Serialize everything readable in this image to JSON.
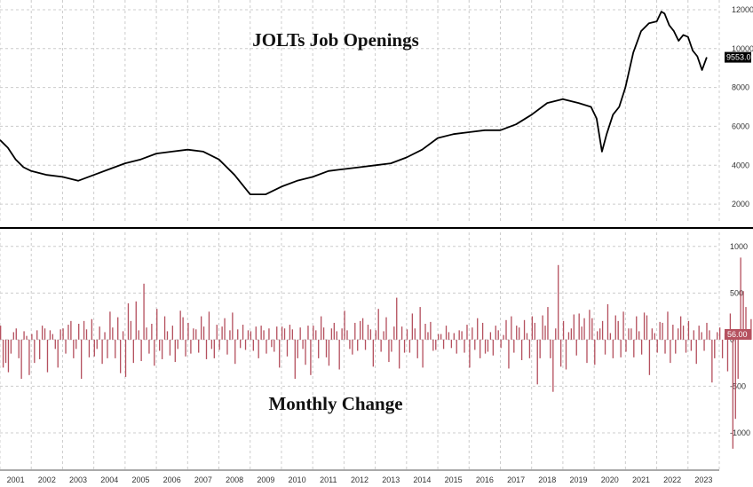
{
  "chart_data": [
    {
      "type": "line",
      "title": "JOLTs Job Openings",
      "xlabel": "",
      "ylabel": "",
      "ylim": [
        1000,
        12500
      ],
      "yticks": [
        2000,
        4000,
        6000,
        8000,
        10000,
        12000
      ],
      "last_value_label": "9553.0",
      "last_value": 9553,
      "series": [
        {
          "x": [
            2001.0,
            2001.25,
            2001.5,
            2001.75,
            2002.0,
            2002.5,
            2003.0,
            2003.5,
            2004.0,
            2004.5,
            2005.0,
            2005.5,
            2006.0,
            2006.5,
            2007.0,
            2007.5,
            2008.0,
            2008.5,
            2009.0,
            2009.5,
            2010.0,
            2010.5,
            2011.0,
            2011.5,
            2012.0,
            2012.5,
            2013.0,
            2013.5,
            2014.0,
            2014.5,
            2015.0,
            2015.5,
            2016.0,
            2016.5,
            2017.0,
            2017.5,
            2018.0,
            2018.5,
            2019.0,
            2019.5,
            2019.9,
            2020.08,
            2020.25,
            2020.4,
            2020.6,
            2020.8,
            2021.0,
            2021.25,
            2021.5,
            2021.75,
            2022.0,
            2022.15,
            2022.25,
            2022.4,
            2022.55,
            2022.7,
            2022.85,
            2023.0,
            2023.15,
            2023.3,
            2023.45,
            2023.6
          ],
          "y": [
            5300,
            4900,
            4300,
            3900,
            3700,
            3500,
            3400,
            3200,
            3500,
            3800,
            4100,
            4300,
            4600,
            4700,
            4800,
            4700,
            4300,
            3500,
            2500,
            2500,
            2900,
            3200,
            3400,
            3700,
            3800,
            3900,
            4000,
            4100,
            4400,
            4800,
            5400,
            5600,
            5700,
            5800,
            5800,
            6100,
            6600,
            7200,
            7400,
            7200,
            7000,
            6400,
            4700,
            5600,
            6600,
            7000,
            8000,
            9800,
            10900,
            11300,
            11400,
            11900,
            11800,
            11200,
            10900,
            10400,
            10700,
            10600,
            9900,
            9600,
            8900,
            9553
          ]
        }
      ]
    },
    {
      "type": "bar",
      "title": "Monthly Change",
      "xlabel": "",
      "ylabel": "",
      "ylim": [
        -1400,
        1150
      ],
      "yticks": [
        -1000,
        -500,
        0,
        500,
        1000
      ],
      "last_value_label": "56.00",
      "last_value": 56,
      "x_start": 2001.0,
      "x_step": 0.0833333,
      "values": [
        150,
        -300,
        -250,
        -350,
        -150,
        80,
        120,
        -200,
        -420,
        90,
        40,
        -380,
        60,
        -250,
        100,
        -210,
        150,
        120,
        -350,
        100,
        60,
        -100,
        -300,
        110,
        120,
        -150,
        160,
        200,
        -200,
        -100,
        170,
        -420,
        200,
        110,
        -190,
        220,
        -180,
        -100,
        140,
        -260,
        80,
        -200,
        300,
        130,
        -200,
        240,
        -360,
        90,
        -400,
        390,
        200,
        -250,
        410,
        100,
        -230,
        600,
        130,
        -150,
        170,
        -280,
        330,
        -120,
        -210,
        250,
        90,
        -170,
        150,
        -240,
        -100,
        310,
        240,
        -180,
        180,
        -150,
        120,
        110,
        -140,
        250,
        140,
        -210,
        300,
        -100,
        -200,
        160,
        -110,
        140,
        230,
        -160,
        100,
        290,
        -260,
        110,
        -90,
        160,
        -110,
        100,
        90,
        -120,
        140,
        -200,
        150,
        100,
        -150,
        120,
        -80,
        -130,
        140,
        -300,
        140,
        120,
        -180,
        160,
        110,
        -420,
        -200,
        130,
        -100,
        -270,
        150,
        -380,
        150,
        100,
        -200,
        250,
        130,
        -190,
        -280,
        120,
        180,
        90,
        -320,
        120,
        310,
        100,
        -100,
        -160,
        180,
        -120,
        200,
        230,
        -110,
        160,
        110,
        -290,
        100,
        330,
        -130,
        90,
        240,
        -240,
        -130,
        140,
        450,
        -310,
        140,
        -140,
        110,
        -140,
        280,
        120,
        -200,
        350,
        -300,
        170,
        80,
        190,
        -120,
        -110,
        60,
        60,
        -100,
        150,
        80,
        -90,
        70,
        -150,
        100,
        90,
        -140,
        160,
        -300,
        130,
        -110,
        230,
        -200,
        180,
        -150,
        -130,
        80,
        -170,
        150,
        100,
        -90,
        50,
        210,
        -310,
        250,
        -140,
        150,
        130,
        -220,
        210,
        70,
        -200,
        250,
        180,
        -480,
        -200,
        260,
        150,
        350,
        -200,
        -560,
        120,
        800,
        -290,
        200,
        -320,
        80,
        120,
        270,
        -170,
        280,
        140,
        230,
        -250,
        320,
        230,
        -270,
        90,
        120,
        200,
        -160,
        380,
        70,
        -200,
        260,
        200,
        -190,
        300,
        -130,
        120,
        120,
        -190,
        250,
        90,
        -160,
        290,
        260,
        -380,
        120,
        70,
        -140,
        190,
        180,
        -150,
        300,
        -250,
        160,
        -150,
        120,
        250,
        150,
        -140,
        200,
        -120,
        100,
        -260,
        150,
        80,
        -120,
        180,
        100,
        -460,
        -200,
        80,
        130,
        -200,
        70,
        -340,
        280,
        -1170,
        -850,
        -420,
        880,
        520,
        350,
        90,
        220,
        -300,
        420,
        210,
        -110,
        600,
        660,
        880,
        690,
        110,
        800,
        590,
        410,
        -230,
        -310,
        430,
        180,
        620,
        -100,
        -430,
        -490,
        240,
        590,
        -1140,
        -420,
        520,
        290,
        -320,
        -680,
        -250,
        560,
        -590,
        -740,
        -300,
        560,
        56
      ]
    }
  ],
  "x_axis": {
    "year_labels": [
      "2001",
      "2002",
      "2003",
      "2004",
      "2005",
      "2006",
      "2007",
      "2008",
      "2009",
      "2010",
      "2011",
      "2012",
      "2013",
      "2014",
      "2015",
      "2016",
      "2017",
      "2018",
      "2019",
      "2020",
      "2021",
      "2022",
      "2023"
    ],
    "range": [
      2001.0,
      2024.0
    ]
  },
  "colors": {
    "line": "#000000",
    "bars": "#b5515f",
    "grid": "#cccccc",
    "badge_top": "#000000",
    "badge_bottom": "#b5515f"
  }
}
